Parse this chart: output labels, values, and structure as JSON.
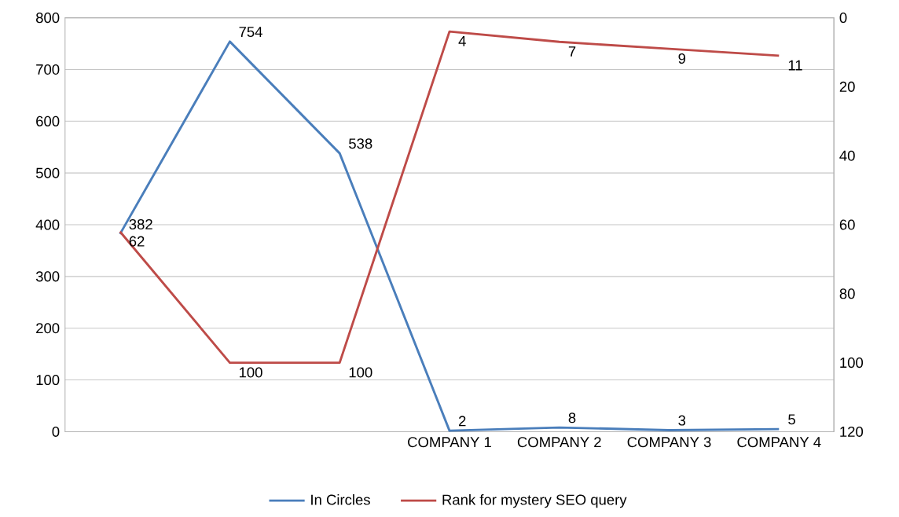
{
  "chart_data": {
    "type": "line",
    "categories": [
      null,
      null,
      null,
      "COMPANY 1",
      "COMPANY 2",
      "COMPANY 3",
      "COMPANY 4"
    ],
    "series": [
      {
        "name": "In Circles",
        "color": "#4a7ebb",
        "values": [
          382,
          754,
          538,
          2,
          8,
          3,
          5
        ]
      },
      {
        "name": "Rank for mystery SEO query",
        "color": "#be4b48",
        "axis": "y2",
        "values": [
          62,
          100,
          100,
          4,
          7,
          9,
          11
        ]
      }
    ],
    "ylim": [
      0,
      800
    ],
    "yticks": [
      0,
      100,
      200,
      300,
      400,
      500,
      600,
      700,
      800
    ],
    "y2lim": [
      120,
      0
    ],
    "y2ticks": [
      0,
      20,
      40,
      60,
      80,
      100,
      120
    ],
    "grid": "y",
    "legend": "bottom",
    "data_labels": true,
    "marker": "none",
    "line_style": "solid"
  }
}
